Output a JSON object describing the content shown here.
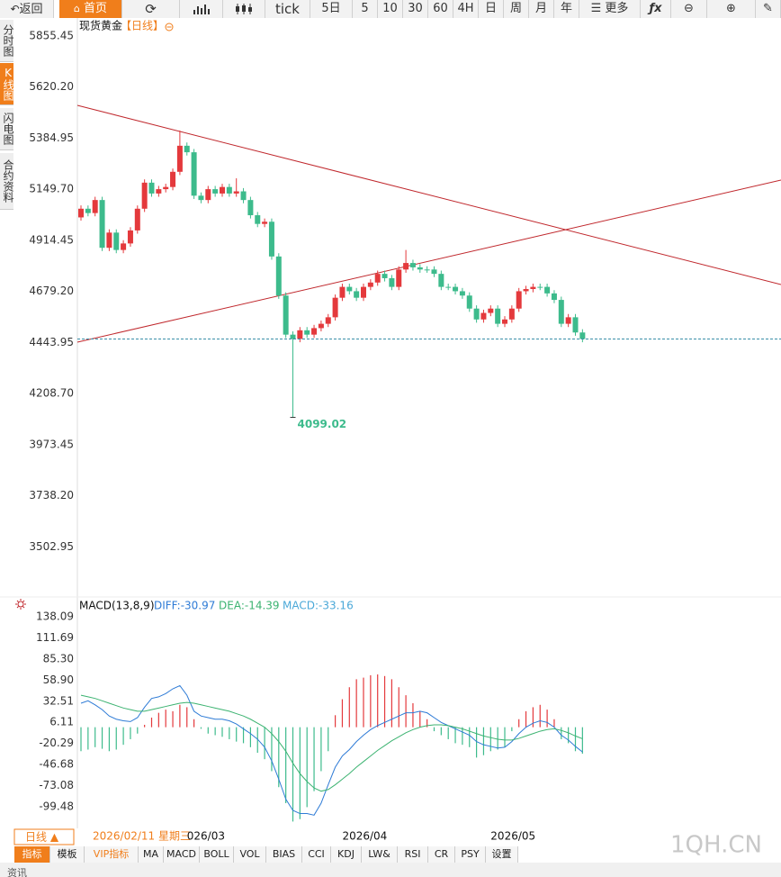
{
  "toolbar": {
    "back": "返回",
    "home": "首页",
    "tick": "tick",
    "periods": [
      "5日",
      "5",
      "10",
      "30",
      "60",
      "4H",
      "日",
      "周",
      "月",
      "年"
    ],
    "more": "更多"
  },
  "sidebar": [
    "分时图",
    "K线图",
    "闪电图",
    "合约资料"
  ],
  "header": {
    "symbol": "现货黄金",
    "period": "【日线】"
  },
  "chart_data": [
    {
      "type": "candlestick",
      "categories": [
        null,
        null,
        null,
        null,
        null,
        null,
        null,
        null,
        null,
        null,
        null,
        null,
        null,
        null,
        null,
        "026/03",
        null,
        null,
        null,
        null,
        null,
        null,
        null,
        null,
        null,
        null,
        null,
        null,
        null,
        null,
        null,
        null,
        null,
        null,
        null,
        null,
        null,
        "2026/04",
        null,
        null,
        null,
        null,
        null,
        null,
        null,
        null,
        null,
        null,
        null,
        null,
        null,
        null,
        null,
        null,
        null,
        null,
        null,
        null,
        "2026/05",
        null,
        null,
        null,
        null,
        null,
        null,
        null,
        null,
        null,
        null,
        null,
        null,
        null
      ],
      "open": [
        5020,
        5060,
        5040,
        5100,
        4880,
        4950,
        4870,
        4900,
        4960,
        5060,
        5180,
        5130,
        5150,
        5160,
        5230,
        5350,
        5320,
        5120,
        5100,
        5150,
        5130,
        5160,
        5130,
        5140,
        5100,
        5030,
        4990,
        5000,
        4840,
        4660,
        4480,
        4460,
        4500,
        4480,
        4510,
        4530,
        4560,
        4650,
        4700,
        4680,
        4650,
        4700,
        4720,
        4760,
        4740,
        4700,
        4780,
        4810,
        4790,
        4780,
        4780,
        4760,
        4700,
        4700,
        4680,
        4660,
        4600,
        4550,
        4580,
        4600,
        4530,
        4550,
        4600,
        4680,
        4690,
        4700,
        4700,
        4670,
        4640,
        4530,
        4560,
        4490
      ],
      "high": [
        5075,
        5075,
        5115,
        5115,
        4965,
        4965,
        4915,
        4975,
        5075,
        5195,
        5195,
        5165,
        5175,
        5245,
        5420,
        5365,
        5335,
        5135,
        5165,
        5165,
        5175,
        5175,
        5200,
        5155,
        5115,
        5045,
        5015,
        5015,
        4855,
        4675,
        4495,
        4515,
        4515,
        4525,
        4545,
        4575,
        4665,
        4715,
        4715,
        4695,
        4715,
        4735,
        4775,
        4775,
        4755,
        4795,
        4870,
        4825,
        4805,
        4795,
        4795,
        4775,
        4715,
        4715,
        4695,
        4675,
        4615,
        4595,
        4615,
        4615,
        4565,
        4615,
        4695,
        4705,
        4715,
        4715,
        4715,
        4685,
        4655,
        4575,
        4575,
        4505
      ],
      "low": [
        5005,
        5025,
        5025,
        4865,
        4865,
        4855,
        4855,
        4885,
        4945,
        5045,
        5115,
        5115,
        5135,
        5145,
        5215,
        5305,
        5105,
        5085,
        5085,
        5115,
        5115,
        5115,
        5115,
        5085,
        5015,
        4975,
        4975,
        4825,
        4645,
        4465,
        4099.02,
        4445,
        4465,
        4465,
        4495,
        4515,
        4545,
        4635,
        4665,
        4635,
        4635,
        4685,
        4705,
        4725,
        4685,
        4685,
        4765,
        4775,
        4765,
        4765,
        4745,
        4685,
        4685,
        4665,
        4645,
        4585,
        4535,
        4535,
        4565,
        4515,
        4515,
        4535,
        4585,
        4665,
        4675,
        4685,
        4655,
        4625,
        4515,
        4515,
        4475,
        4445
      ],
      "close": [
        5060,
        5040,
        5100,
        4880,
        4950,
        4870,
        4900,
        4960,
        5060,
        5180,
        5130,
        5150,
        5160,
        5230,
        5350,
        5320,
        5120,
        5100,
        5150,
        5130,
        5160,
        5130,
        5140,
        5100,
        5030,
        4990,
        5000,
        4840,
        4660,
        4480,
        4460,
        4500,
        4480,
        4510,
        4530,
        4560,
        4650,
        4700,
        4680,
        4650,
        4700,
        4720,
        4760,
        4740,
        4700,
        4780,
        4810,
        4790,
        4780,
        4780,
        4760,
        4700,
        4700,
        4680,
        4660,
        4600,
        4550,
        4580,
        4600,
        4530,
        4550,
        4600,
        4680,
        4690,
        4700,
        4700,
        4670,
        4640,
        4530,
        4560,
        4490,
        4460
      ],
      "up_color": "#e4393c",
      "down_color": "#3dbb8c",
      "low_label_color": "#3dbb8c",
      "ylim": [
        3276,
        5930
      ],
      "yticks": [
        5855.45,
        {
          "value": 5620.2,
          "label": "5620.20"
        },
        5384.95,
        {
          "value": 5149.7,
          "label": "5149.70"
        },
        4914.45,
        {
          "value": 4679.2,
          "label": "4679.20"
        },
        4443.95,
        {
          "value": 4208.7,
          "label": "4208.70"
        },
        3973.45,
        {
          "value": 3738.2,
          "label": "3738.20"
        },
        3502.95
      ],
      "grid": false,
      "last_price_line": true,
      "last_price_color": "#3a8fa8"
    },
    {
      "type": "macd",
      "title": "MACD(13,8,9)",
      "annotations": [
        "DIFF:-30.97",
        "DEA:-14.39",
        "MACD:-33.16"
      ],
      "annotation_colors": [
        "#2e7bd6",
        "#3cb371",
        "#4aa8d8"
      ],
      "histogram": [
        -30,
        -28,
        -25,
        -27,
        -30,
        -28,
        -22,
        -15,
        -8,
        3,
        12,
        18,
        22,
        20,
        28,
        25,
        10,
        -2,
        -8,
        -10,
        -12,
        -15,
        -18,
        -20,
        -25,
        -32,
        -40,
        -55,
        -75,
        -95,
        -118,
        -115,
        -100,
        -80,
        -55,
        -30,
        15,
        35,
        50,
        60,
        62,
        65,
        66,
        64,
        60,
        50,
        40,
        30,
        20,
        10,
        -5,
        -10,
        -15,
        -20,
        -22,
        -25,
        -38,
        -35,
        -30,
        -28,
        -25,
        -5,
        10,
        20,
        25,
        28,
        22,
        10,
        -15,
        -20,
        -30,
        -33.16
      ],
      "up_color": "#e4393c",
      "down_color": "#3dbb8c",
      "series": [
        {
          "color": "#2e7bd6",
          "values": [
            30,
            33,
            28,
            22,
            14,
            10,
            8,
            7,
            12,
            25,
            36,
            38,
            42,
            48,
            52,
            40,
            20,
            14,
            12,
            10,
            10,
            8,
            4,
            -2,
            -8,
            -15,
            -25,
            -42,
            -65,
            -90,
            -104,
            -108,
            -108,
            -110,
            -95,
            -72,
            -50,
            -36,
            -28,
            -18,
            -10,
            -3,
            2,
            6,
            10,
            14,
            18,
            18,
            20,
            18,
            12,
            6,
            2,
            -2,
            -6,
            -10,
            -18,
            -22,
            -24,
            -26,
            -25,
            -18,
            -8,
            0,
            5,
            8,
            6,
            0,
            -10,
            -16,
            -24,
            -30.97
          ]
        },
        {
          "color": "#3cb371",
          "values": [
            40,
            38,
            36,
            33,
            30,
            27,
            24,
            22,
            20,
            20,
            22,
            24,
            26,
            28,
            30,
            31,
            30,
            28,
            26,
            24,
            22,
            20,
            17,
            14,
            10,
            5,
            0,
            -8,
            -18,
            -30,
            -45,
            -58,
            -68,
            -76,
            -80,
            -78,
            -72,
            -65,
            -58,
            -50,
            -43,
            -36,
            -29,
            -23,
            -17,
            -12,
            -7,
            -3,
            0,
            2,
            3,
            3,
            2,
            0,
            -2,
            -5,
            -8,
            -11,
            -13,
            -15,
            -16,
            -16,
            -14,
            -11,
            -8,
            -5,
            -3,
            -2,
            -4,
            -7,
            -11,
            -14.39
          ]
        }
      ],
      "ylim": [
        -124.3,
        162.9
      ],
      "yticks": [
        138.09,
        111.69,
        {
          "value": 85.3,
          "label": "85.30"
        },
        {
          "value": 58.9,
          "label": "58.90"
        },
        32.51,
        6.11,
        -20.29,
        -46.68,
        -73.08,
        -99.48
      ],
      "grid": false
    }
  ],
  "footer": {
    "period": "日线 ▲",
    "crosshair_date": "2026/02/11 星期三"
  },
  "tabs": [
    "指标",
    "模板",
    "VIP指标",
    "MA",
    "MACD",
    "BOLL",
    "VOL",
    "BIAS",
    "CCI",
    "KDJ",
    "LW&",
    "RSI",
    "CR",
    "PSY",
    "设置"
  ],
  "watermark": "1QH.CN",
  "news_tab": "资讯"
}
